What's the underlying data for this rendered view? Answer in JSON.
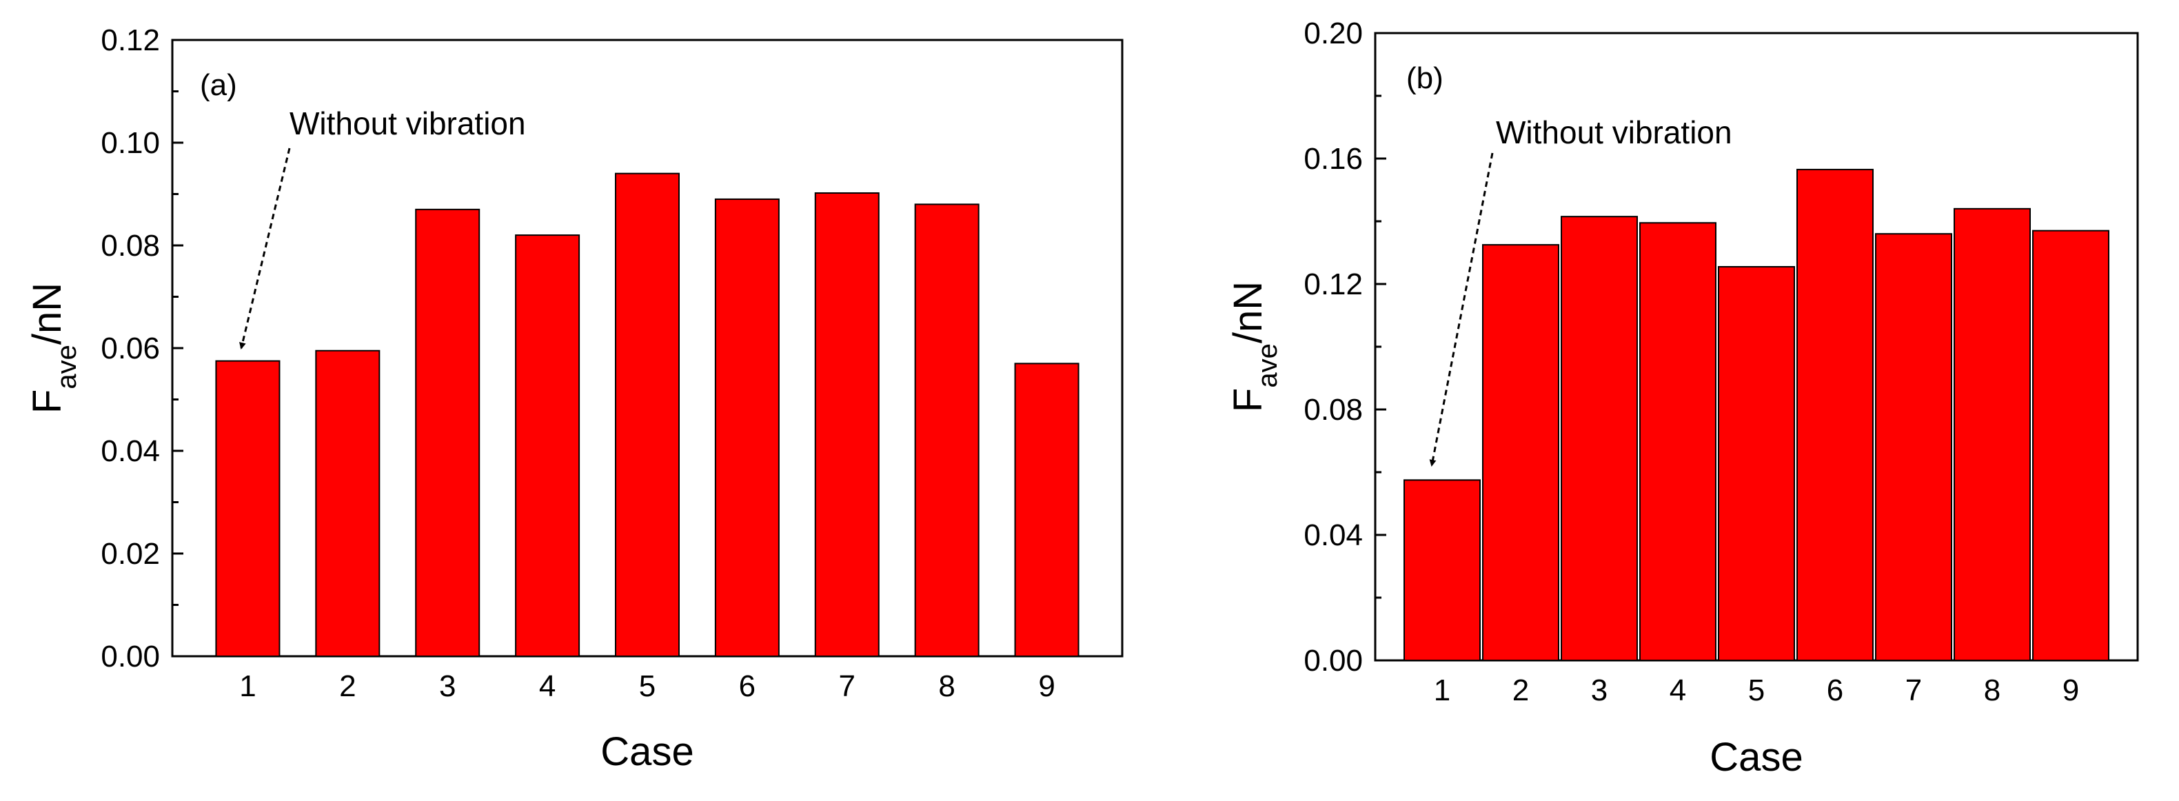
{
  "chart_data": [
    {
      "type": "bar",
      "panel_label": "(a)",
      "categories": [
        "1",
        "2",
        "3",
        "4",
        "5",
        "6",
        "7",
        "8",
        "9"
      ],
      "values": [
        0.0575,
        0.0595,
        0.087,
        0.082,
        0.094,
        0.089,
        0.0902,
        0.088,
        0.057
      ],
      "ylim": [
        0,
        0.12
      ],
      "yticks": [
        "0.00",
        "0.02",
        "0.04",
        "0.06",
        "0.08",
        "0.10",
        "0.12"
      ],
      "xlabel": "Case",
      "ylabel_main": "F",
      "ylabel_sub": "ave",
      "ylabel_rest": "/nN",
      "annotation": {
        "text": "Without vibration",
        "target_category": "1"
      },
      "bar_color": "#ff0000"
    },
    {
      "type": "bar",
      "panel_label": "(b)",
      "categories": [
        "1",
        "2",
        "3",
        "4",
        "5",
        "6",
        "7",
        "8",
        "9"
      ],
      "values": [
        0.0575,
        0.1325,
        0.1415,
        0.1395,
        0.1255,
        0.1565,
        0.136,
        0.144,
        0.137
      ],
      "ylim": [
        0,
        0.2
      ],
      "yticks": [
        "0.00",
        "0.04",
        "0.08",
        "0.12",
        "0.16",
        "0.20"
      ],
      "xlabel": "Case",
      "ylabel_main": "F",
      "ylabel_sub": "ave",
      "ylabel_rest": "/nN",
      "annotation": {
        "text": "Without vibration",
        "target_category": "1"
      },
      "bar_color": "#ff0000"
    }
  ]
}
